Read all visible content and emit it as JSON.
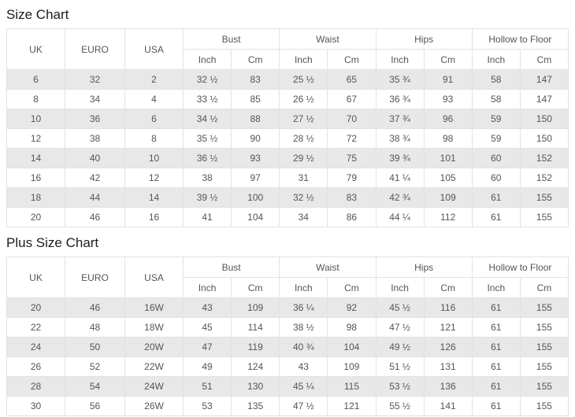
{
  "colors": {
    "background": "#ffffff",
    "row_stripe": "#e8e8e8",
    "table_border": "#e2e2e2",
    "cell_text": "#555555",
    "title_text": "#1c1c1c"
  },
  "size_chart": {
    "title": "Size Chart",
    "base_columns": [
      "UK",
      "EURO",
      "USA"
    ],
    "measure_groups": [
      {
        "label": "Bust",
        "units": [
          "Inch",
          "Cm"
        ]
      },
      {
        "label": "Waist",
        "units": [
          "Inch",
          "Cm"
        ]
      },
      {
        "label": "Hips",
        "units": [
          "Inch",
          "Cm"
        ]
      },
      {
        "label": "Hollow to Floor",
        "units": [
          "Inch",
          "Cm"
        ]
      }
    ],
    "rows": [
      [
        "6",
        "32",
        "2",
        "32 ½",
        "83",
        "25 ½",
        "65",
        "35 ¾",
        "91",
        "58",
        "147"
      ],
      [
        "8",
        "34",
        "4",
        "33 ½",
        "85",
        "26 ½",
        "67",
        "36 ¾",
        "93",
        "58",
        "147"
      ],
      [
        "10",
        "36",
        "6",
        "34 ½",
        "88",
        "27 ½",
        "70",
        "37 ¾",
        "96",
        "59",
        "150"
      ],
      [
        "12",
        "38",
        "8",
        "35 ½",
        "90",
        "28 ½",
        "72",
        "38 ¾",
        "98",
        "59",
        "150"
      ],
      [
        "14",
        "40",
        "10",
        "36 ½",
        "93",
        "29 ½",
        "75",
        "39 ¾",
        "101",
        "60",
        "152"
      ],
      [
        "16",
        "42",
        "12",
        "38",
        "97",
        "31",
        "79",
        "41 ¼",
        "105",
        "60",
        "152"
      ],
      [
        "18",
        "44",
        "14",
        "39 ½",
        "100",
        "32 ½",
        "83",
        "42 ¾",
        "109",
        "61",
        "155"
      ],
      [
        "20",
        "46",
        "16",
        "41",
        "104",
        "34",
        "86",
        "44 ¼",
        "112",
        "61",
        "155"
      ]
    ]
  },
  "plus_size_chart": {
    "title": "Plus Size Chart",
    "base_columns": [
      "UK",
      "EURO",
      "USA"
    ],
    "measure_groups": [
      {
        "label": "Bust",
        "units": [
          "Inch",
          "Cm"
        ]
      },
      {
        "label": "Waist",
        "units": [
          "Inch",
          "Cm"
        ]
      },
      {
        "label": "Hips",
        "units": [
          "Inch",
          "Cm"
        ]
      },
      {
        "label": "Hollow to Floor",
        "units": [
          "Inch",
          "Cm"
        ]
      }
    ],
    "rows": [
      [
        "20",
        "46",
        "16W",
        "43",
        "109",
        "36 ¼",
        "92",
        "45 ½",
        "116",
        "61",
        "155"
      ],
      [
        "22",
        "48",
        "18W",
        "45",
        "114",
        "38 ½",
        "98",
        "47 ½",
        "121",
        "61",
        "155"
      ],
      [
        "24",
        "50",
        "20W",
        "47",
        "119",
        "40 ¾",
        "104",
        "49 ½",
        "126",
        "61",
        "155"
      ],
      [
        "26",
        "52",
        "22W",
        "49",
        "124",
        "43",
        "109",
        "51 ½",
        "131",
        "61",
        "155"
      ],
      [
        "28",
        "54",
        "24W",
        "51",
        "130",
        "45 ¼",
        "115",
        "53 ½",
        "136",
        "61",
        "155"
      ],
      [
        "30",
        "56",
        "26W",
        "53",
        "135",
        "47 ½",
        "121",
        "55 ½",
        "141",
        "61",
        "155"
      ]
    ]
  }
}
